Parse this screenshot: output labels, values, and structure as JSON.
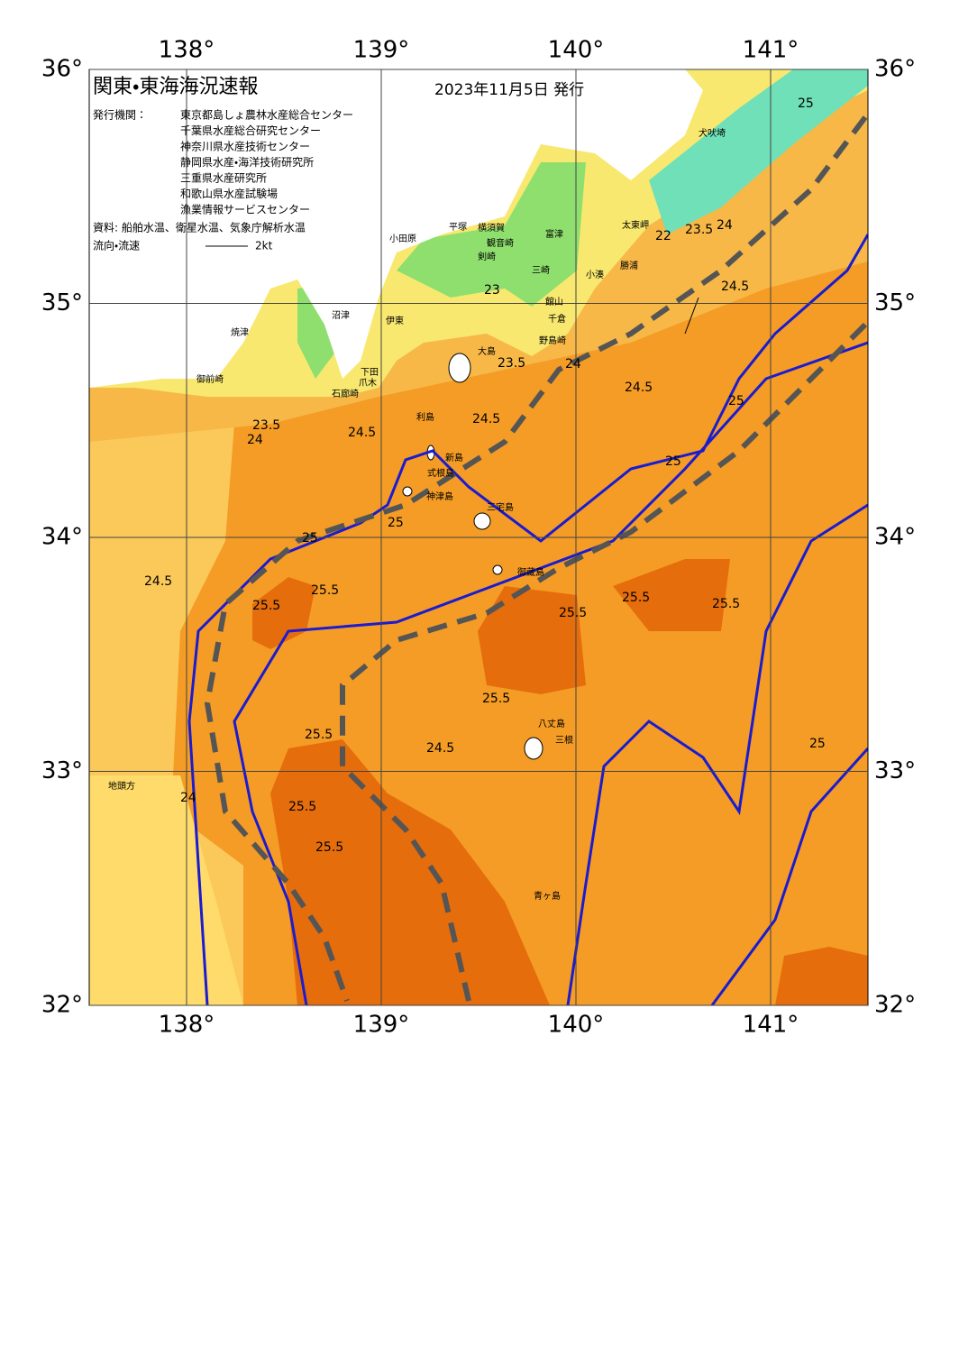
{
  "header": {
    "title": "関東・東海海況速報",
    "date": "2023年11月5日 発行"
  },
  "publishers": {
    "label": "発行機関：",
    "items": [
      "東京都島しょ農林水産総合センター",
      "千葉県水産総合研究センター",
      "神奈川県水産技術センター",
      "静岡県水産・海洋技術研究所",
      "三重県水産研究所",
      "和歌山県水産試験場",
      "漁業情報サービスセンター"
    ]
  },
  "source": "資料: 船舶水温、衛星水温、気象庁解析水温",
  "legend": {
    "label": "流向・流速",
    "speed": "2kt"
  },
  "axes": {
    "lon_ticks": [
      {
        "value": 138,
        "label": "138°"
      },
      {
        "value": 139,
        "label": "139°"
      },
      {
        "value": 140,
        "label": "140°"
      },
      {
        "value": 141,
        "label": "141°"
      }
    ],
    "lat_ticks": [
      {
        "value": 32,
        "label": "32°"
      },
      {
        "value": 33,
        "label": "33°"
      },
      {
        "value": 34,
        "label": "34°"
      },
      {
        "value": 35,
        "label": "35°"
      },
      {
        "value": 36,
        "label": "36°"
      }
    ],
    "lon_lim": [
      137.5,
      141.5
    ],
    "lat_lim": [
      32,
      36
    ]
  },
  "places": [
    "犬吠埼",
    "太東岬",
    "勝浦",
    "小湊",
    "富津",
    "横須賀",
    "観音崎",
    "剣崎",
    "平塚",
    "小田原",
    "三崎",
    "館山",
    "千倉",
    "野島崎",
    "大島",
    "利島",
    "新島",
    "式根島",
    "神津島",
    "三宅島",
    "御蔵島",
    "八丈島",
    "三根",
    "青ヶ島",
    "石廊崎",
    "下田",
    "爪木",
    "伊東",
    "沼津",
    "焼津",
    "御前崎",
    "地頭方"
  ],
  "isotherms": [
    22,
    23.5,
    24,
    25,
    23,
    23.5,
    24,
    24.5,
    23.5,
    24,
    24.5,
    24.5,
    24.5,
    25,
    25.5,
    25.5,
    25.5,
    25.5,
    25.5,
    25.5,
    25.5,
    25.5,
    25.5,
    24.5,
    24,
    24.5,
    25,
    25,
    25,
    25
  ]
}
